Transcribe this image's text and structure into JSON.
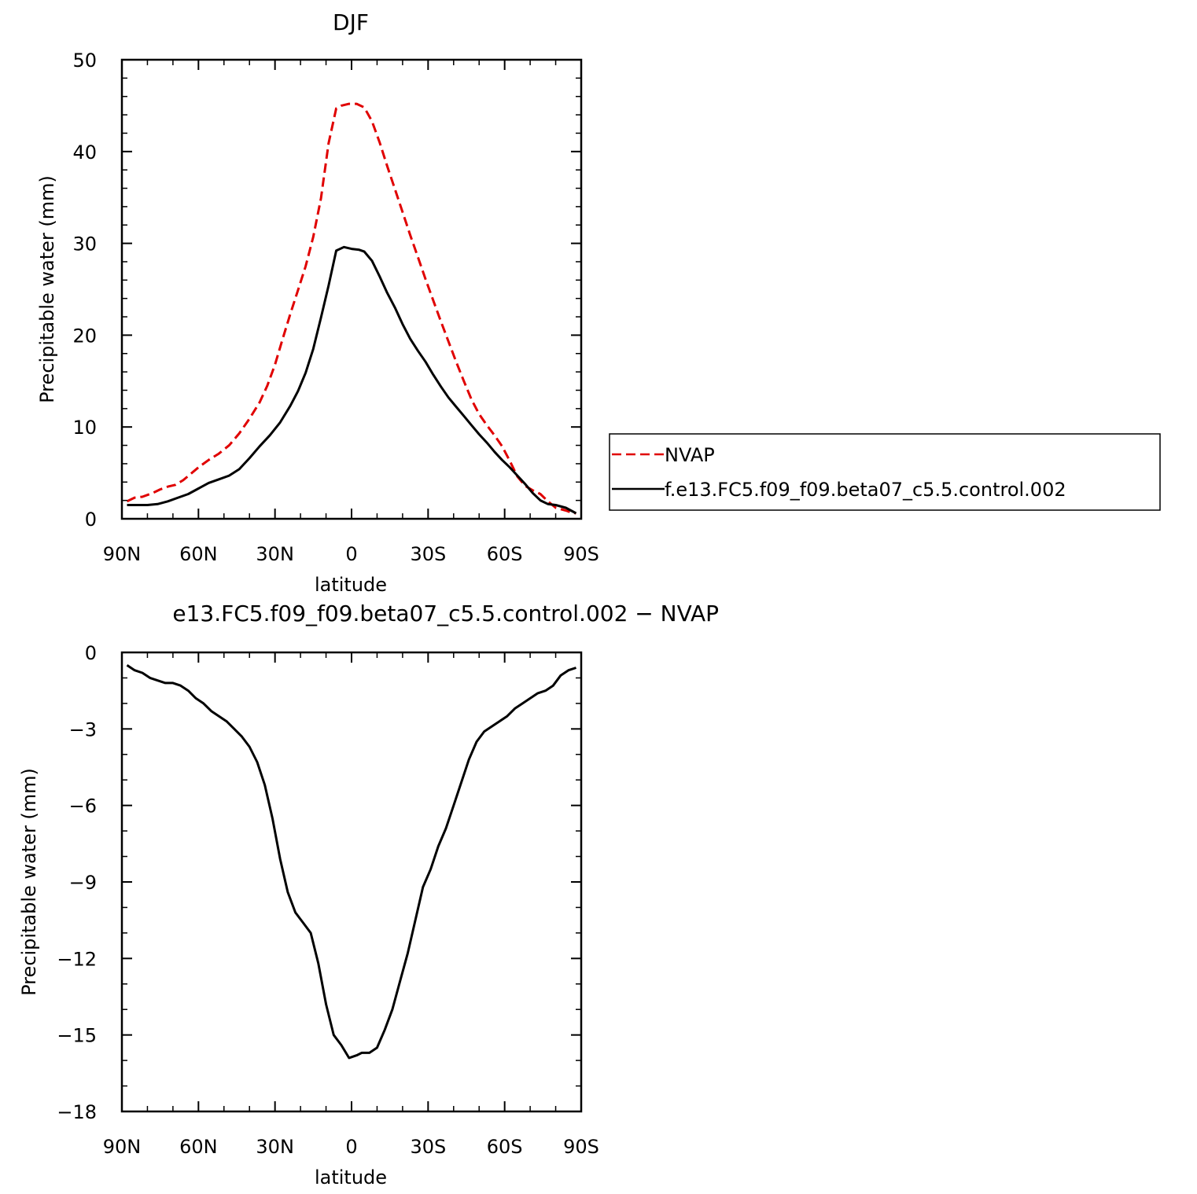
{
  "chart_data": [
    {
      "type": "line",
      "title": "DJF",
      "xlabel": "latitude",
      "ylabel": "Precipitable water (mm)",
      "xlim": [
        -90,
        90
      ],
      "ylim": [
        0,
        50
      ],
      "x_ticks": [
        -90,
        -60,
        -30,
        0,
        30,
        60,
        90
      ],
      "x_tick_labels": [
        "90N",
        "60N",
        "30N",
        "0",
        "30S",
        "60S",
        "90S"
      ],
      "y_ticks": [
        0,
        10,
        20,
        30,
        40,
        50
      ],
      "y_tick_labels": [
        "0",
        "10",
        "20",
        "30",
        "40",
        "50"
      ],
      "grid": false,
      "legend": {
        "placement": "right",
        "entries": [
          {
            "name": "NVAP",
            "color": "#e00000",
            "dash": "dashed"
          },
          {
            "name": "f.e13.FC5.f09_f09.beta07_c5.5.control.002",
            "color": "#000000",
            "dash": "solid"
          }
        ]
      },
      "series": [
        {
          "name": "NVAP",
          "color": "#e00000",
          "x": [
            -88,
            -85,
            -82,
            -78,
            -75,
            -72,
            -69,
            -66,
            -63,
            -60,
            -56,
            -52,
            -48,
            -44,
            -40,
            -36,
            -33,
            -30,
            -27,
            -24,
            -21,
            -18,
            -15,
            -12,
            -9,
            -6,
            -4,
            -1,
            2,
            5,
            8,
            11,
            14,
            17,
            20,
            23,
            26,
            29,
            32,
            35,
            38,
            41,
            44,
            47,
            50,
            53,
            56,
            59,
            62,
            65,
            68,
            71,
            74,
            77,
            80,
            84,
            86,
            88
          ],
          "values": [
            1.9,
            2.3,
            2.4,
            2.8,
            3.2,
            3.5,
            3.7,
            4.2,
            4.9,
            5.6,
            6.4,
            7.1,
            8.0,
            9.3,
            10.9,
            12.7,
            14.5,
            16.8,
            19.6,
            22.3,
            24.9,
            27.5,
            30.7,
            34.9,
            40.9,
            44.7,
            45.0,
            45.2,
            45.2,
            44.8,
            43.3,
            41.0,
            38.4,
            35.9,
            33.4,
            30.9,
            28.5,
            26.1,
            23.8,
            21.5,
            19.3,
            17.1,
            15.0,
            13.0,
            11.4,
            10.2,
            9.1,
            7.9,
            6.3,
            4.6,
            3.6,
            3.1,
            2.7,
            1.9,
            1.2,
            0.9,
            0.7,
            0.6
          ],
          "note": ""
        },
        {
          "name": "f.e13.FC5.f09_f09.beta07_c5.5.control.002",
          "color": "#000000",
          "x": [
            -88,
            -84,
            -80,
            -76,
            -72,
            -68,
            -64,
            -60,
            -56,
            -52,
            -48,
            -44,
            -40,
            -36,
            -32,
            -28,
            -24,
            -21,
            -18,
            -15,
            -12,
            -9,
            -6,
            -3,
            0,
            3,
            5,
            8,
            11,
            14,
            17,
            20,
            23,
            26,
            29,
            32,
            35,
            38,
            41,
            44,
            47,
            50,
            53,
            56,
            59,
            62,
            65,
            68,
            71,
            74,
            77,
            80,
            84,
            86,
            88
          ],
          "values": [
            1.5,
            1.5,
            1.5,
            1.6,
            1.9,
            2.3,
            2.7,
            3.3,
            3.9,
            4.3,
            4.7,
            5.4,
            6.6,
            7.9,
            9.1,
            10.5,
            12.3,
            13.9,
            15.9,
            18.5,
            21.9,
            25.4,
            29.2,
            29.6,
            29.4,
            29.3,
            29.1,
            28.1,
            26.4,
            24.6,
            23.0,
            21.2,
            19.6,
            18.3,
            17.1,
            15.7,
            14.4,
            13.2,
            12.2,
            11.2,
            10.2,
            9.2,
            8.3,
            7.3,
            6.4,
            5.6,
            4.7,
            3.8,
            2.8,
            2.0,
            1.6,
            1.5,
            1.2,
            0.9,
            0.6
          ],
          "note": ""
        }
      ]
    },
    {
      "type": "line",
      "title": "e13.FC5.f09_f09.beta07_c5.5.control.002 − NVAP",
      "xlabel": "latitude",
      "ylabel": "Precipitable water (mm)",
      "xlim": [
        -90,
        90
      ],
      "ylim": [
        -18,
        0
      ],
      "x_ticks": [
        -90,
        -60,
        -30,
        0,
        30,
        60,
        90
      ],
      "x_tick_labels": [
        "90N",
        "60N",
        "30N",
        "0",
        "30S",
        "60S",
        "90S"
      ],
      "y_ticks": [
        0,
        -3,
        -6,
        -9,
        -12,
        -15,
        -18
      ],
      "y_tick_labels": [
        "0",
        "−3",
        "−6",
        "−9",
        "−12",
        "−15",
        "−18"
      ],
      "grid": false,
      "series": [
        {
          "color": "#000000",
          "x": [
            -88,
            -85,
            -82,
            -79,
            -76,
            -73,
            -70,
            -67,
            -64,
            -61,
            -58,
            -55,
            -52,
            -49,
            -46,
            -43,
            -40,
            -37,
            -34,
            -31,
            -28,
            -25,
            -22,
            -19,
            -16,
            -13,
            -10,
            -7,
            -4,
            -1,
            2,
            4,
            7,
            10,
            13,
            16,
            19,
            22,
            25,
            28,
            31,
            34,
            37,
            40,
            43,
            46,
            49,
            52,
            55,
            58,
            61,
            64,
            67,
            70,
            73,
            76,
            79,
            82,
            85,
            88
          ],
          "values": [
            -0.5,
            -0.7,
            -0.8,
            -1.0,
            -1.1,
            -1.2,
            -1.2,
            -1.3,
            -1.5,
            -1.8,
            -2.0,
            -2.3,
            -2.5,
            -2.7,
            -3.0,
            -3.3,
            -3.7,
            -4.3,
            -5.2,
            -6.5,
            -8.1,
            -9.4,
            -10.2,
            -10.6,
            -11.0,
            -12.2,
            -13.8,
            -15.0,
            -15.4,
            -15.9,
            -15.8,
            -15.7,
            -15.7,
            -15.5,
            -14.8,
            -14.0,
            -12.9,
            -11.8,
            -10.5,
            -9.2,
            -8.5,
            -7.6,
            -6.9,
            -6.0,
            -5.1,
            -4.2,
            -3.5,
            -3.1,
            -2.9,
            -2.7,
            -2.5,
            -2.2,
            -2.0,
            -1.8,
            -1.6,
            -1.5,
            -1.3,
            -0.9,
            -0.7,
            -0.6
          ]
        }
      ]
    }
  ]
}
